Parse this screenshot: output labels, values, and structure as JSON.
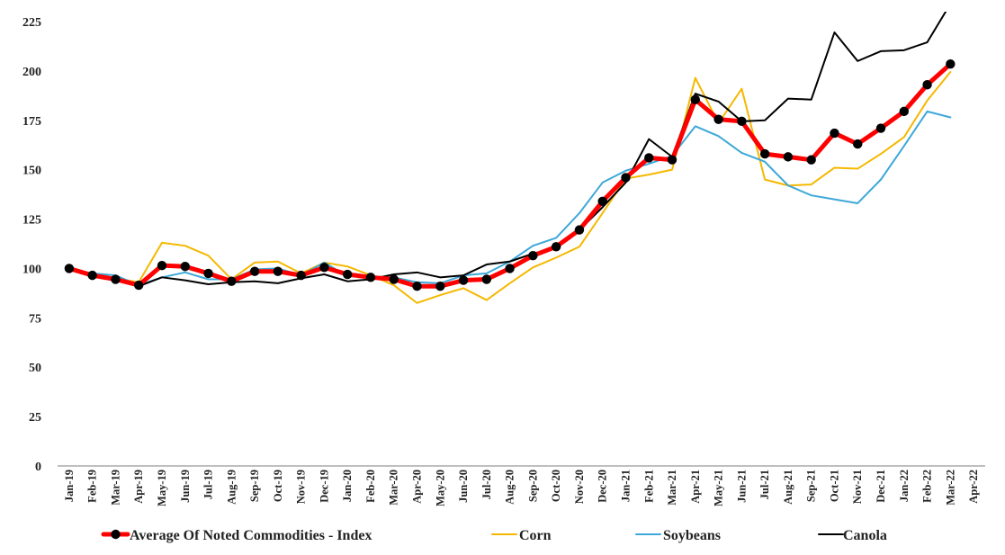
{
  "chart_data": {
    "type": "line",
    "title": "",
    "xlabel": "",
    "ylabel": "",
    "ylim": [
      0,
      230
    ],
    "yticks": [
      0,
      25,
      50,
      75,
      100,
      125,
      150,
      175,
      200,
      225
    ],
    "grid": false,
    "legend_position": "bottom",
    "categories": [
      "Jan-19",
      "Feb-19",
      "Mar-19",
      "Apr-19",
      "May-19",
      "Jun-19",
      "Jul-19",
      "Aug-19",
      "Sep-19",
      "Oct-19",
      "Nov-19",
      "Dec-19",
      "Jan-20",
      "Feb-20",
      "Mar-20",
      "Apr-20",
      "May-20",
      "Jun-20",
      "Jul-20",
      "Aug-20",
      "Sep-20",
      "Oct-20",
      "Nov-20",
      "Dec-20",
      "Jan-21",
      "Feb-21",
      "Mar-21",
      "Apr-21",
      "May-21",
      "Jun-21",
      "Jul-21",
      "Aug-21",
      "Sep-21",
      "Oct-21",
      "Nov-21",
      "Dec-21",
      "Jan-22",
      "Feb-22",
      "Mar-22",
      "Apr-22"
    ],
    "series": [
      {
        "name": "Average Of Noted Commodities - Index",
        "color": "#ff0000",
        "marker_color": "#000000",
        "values": [
          100,
          96.5,
          94.5,
          91.5,
          101.5,
          101,
          97.5,
          93.5,
          98.5,
          98.5,
          96.5,
          100.5,
          97,
          95.5,
          94.5,
          91,
          91,
          94,
          94.5,
          100,
          106.5,
          111,
          119.5,
          134,
          146,
          156,
          155,
          185.5,
          175.5,
          174.5,
          158,
          156.5,
          155,
          168.5,
          163,
          171,
          179.5,
          193,
          203.5,
          null
        ]
      },
      {
        "name": "Corn",
        "color": "#f5b800",
        "values": [
          100,
          96,
          95,
          93,
          113,
          111.5,
          106.5,
          94.5,
          103,
          103.5,
          97.5,
          103,
          101,
          96.5,
          91.5,
          82.5,
          86.5,
          90,
          84,
          92.5,
          100.5,
          105.5,
          111,
          128,
          145.5,
          147.5,
          150,
          196.5,
          173.5,
          191,
          145,
          142,
          142.5,
          151,
          150.5,
          158,
          166.5,
          185,
          199.5,
          null
        ]
      },
      {
        "name": "Soybeans",
        "color": "#3ea8d8",
        "values": [
          100,
          97.5,
          96.5,
          91.5,
          95.5,
          98,
          94.5,
          94.5,
          99.5,
          100,
          96.5,
          103,
          96,
          96,
          95.5,
          93,
          92.5,
          96.5,
          97.5,
          103.5,
          111.5,
          115.5,
          128,
          143.5,
          149.5,
          153,
          157,
          172,
          167,
          158.5,
          154,
          142,
          137,
          135,
          133,
          145,
          162,
          179.5,
          176.5,
          null
        ]
      },
      {
        "name": "Canola",
        "color": "#000000",
        "values": [
          100,
          97,
          95,
          91,
          95.5,
          94,
          92,
          93,
          93.5,
          92.5,
          95,
          97,
          93.5,
          94.5,
          97,
          98,
          95.5,
          96.5,
          102,
          103.5,
          107.5,
          110.5,
          119.5,
          131,
          143.5,
          165.5,
          156.5,
          188.5,
          184.5,
          174.5,
          175,
          186,
          185.5,
          219.5,
          205,
          210,
          210.5,
          214.5,
          234,
          null
        ]
      }
    ]
  }
}
